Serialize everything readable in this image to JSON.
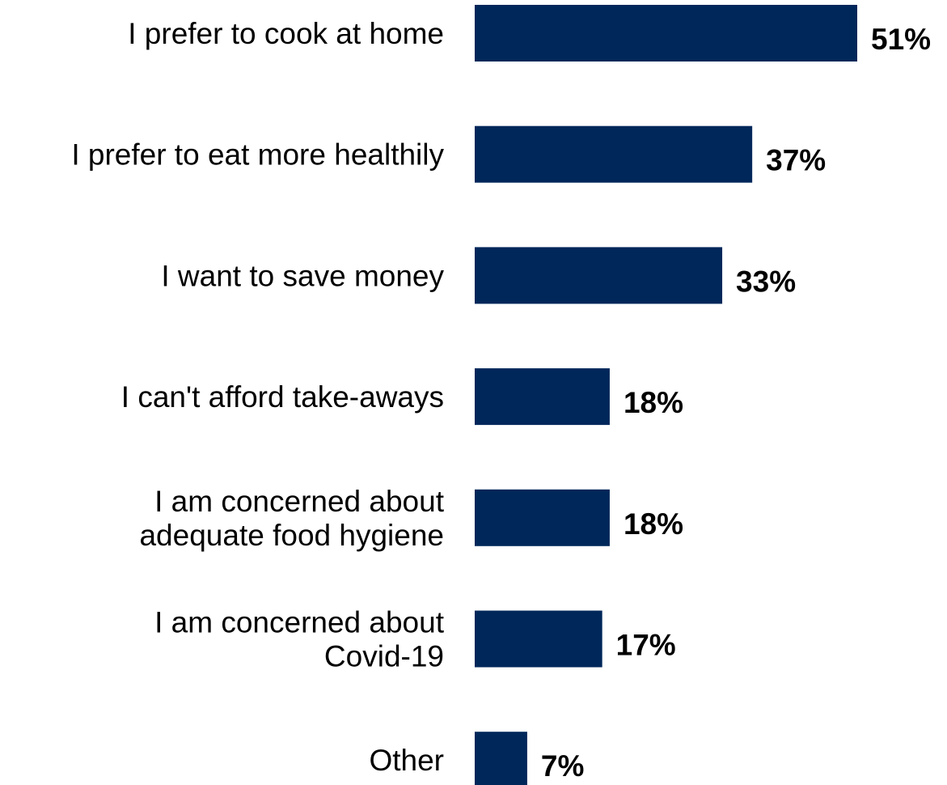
{
  "chart_data": {
    "type": "bar",
    "orientation": "horizontal",
    "categories": [
      [
        "I prefer to cook at home"
      ],
      [
        "I prefer to eat more healthily"
      ],
      [
        "I want to save money"
      ],
      [
        "I can't afford take-aways"
      ],
      [
        "I am concerned about",
        "adequate food hygiene"
      ],
      [
        "I am concerned about",
        "Covid-19"
      ],
      [
        "Other"
      ]
    ],
    "values": [
      51,
      37,
      33,
      18,
      18,
      17,
      7
    ],
    "value_labels": [
      "51%",
      "37%",
      "33%",
      "18%",
      "18%",
      "17%",
      "7%"
    ],
    "unit": "%",
    "xlim": [
      0,
      51
    ],
    "grid": false,
    "legend": "none",
    "bar_color": "#00275a",
    "text_color": "#000000"
  }
}
